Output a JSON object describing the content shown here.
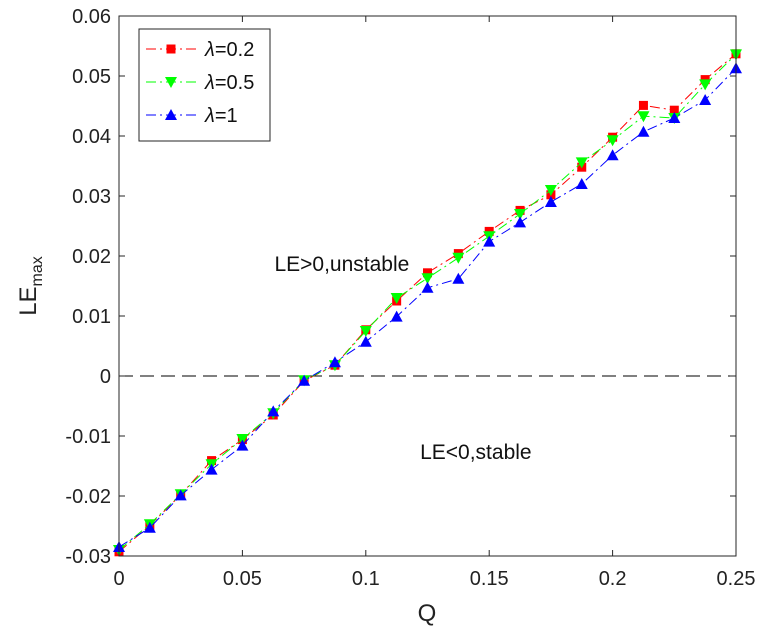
{
  "chart_data": {
    "type": "line",
    "xlabel": "Q",
    "ylabel": "LE",
    "ylabel_sub": "max",
    "xlim": [
      0,
      0.25
    ],
    "ylim": [
      -0.03,
      0.06
    ],
    "xticks": [
      0,
      0.05,
      0.1,
      0.15,
      0.2,
      0.25
    ],
    "xtick_labels": [
      "0",
      "0.05",
      "0.1",
      "0.15",
      "0.2",
      "0.25"
    ],
    "yticks": [
      -0.03,
      -0.02,
      -0.01,
      0,
      0.01,
      0.02,
      0.03,
      0.04,
      0.05,
      0.06
    ],
    "ytick_labels": [
      "-0.03",
      "-0.02",
      "-0.01",
      "0",
      "0.01",
      "0.02",
      "0.03",
      "0.04",
      "0.05",
      "0.06"
    ],
    "grid": false,
    "legend_position": "top-left",
    "reference_line": {
      "y": 0,
      "style": "dashed",
      "color": "#000000"
    },
    "annotations": [
      {
        "text": "LE>0,unstable",
        "x": 0.063,
        "y": 0.0175
      },
      {
        "text": "LE<0,stable",
        "x": 0.122,
        "y": -0.0138
      }
    ],
    "x": [
      0,
      0.0125,
      0.025,
      0.0375,
      0.05,
      0.0625,
      0.075,
      0.0875,
      0.1,
      0.1125,
      0.125,
      0.1375,
      0.15,
      0.1625,
      0.175,
      0.1875,
      0.2,
      0.2125,
      0.225,
      0.2375,
      0.25
    ],
    "series": [
      {
        "name": "λ=0.2",
        "color": "#ff0000",
        "marker": "square",
        "values": [
          -0.0293,
          -0.0249,
          -0.0198,
          -0.0141,
          -0.0106,
          -0.0065,
          -0.0008,
          0.0018,
          0.0077,
          0.0125,
          0.0172,
          0.0204,
          0.0241,
          0.0276,
          0.0302,
          0.0348,
          0.0398,
          0.0451,
          0.0443,
          0.0494,
          0.0537
        ]
      },
      {
        "name": "λ=0.5",
        "color": "#00ff00",
        "marker": "triangle-down",
        "values": [
          -0.029,
          -0.0247,
          -0.0197,
          -0.0147,
          -0.0105,
          -0.0062,
          -0.0007,
          0.0018,
          0.0075,
          0.013,
          0.0163,
          0.0197,
          0.0233,
          0.027,
          0.031,
          0.0356,
          0.0393,
          0.0433,
          0.043,
          0.0486,
          0.0536
        ]
      },
      {
        "name": "λ=1",
        "color": "#0000ff",
        "marker": "triangle-up",
        "values": [
          -0.0285,
          -0.0253,
          -0.0199,
          -0.0156,
          -0.0116,
          -0.0059,
          -0.0008,
          0.0023,
          0.0057,
          0.0099,
          0.0147,
          0.0162,
          0.0224,
          0.0256,
          0.029,
          0.032,
          0.0368,
          0.0407,
          0.043,
          0.046,
          0.0513
        ]
      }
    ]
  }
}
